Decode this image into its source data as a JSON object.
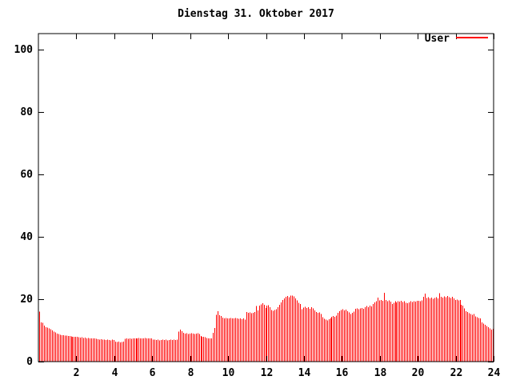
{
  "window": {
    "background": "#ffffff"
  },
  "chart_data": {
    "type": "bar",
    "title": "Dienstag 31. Oktober 2017",
    "xlabel": "",
    "ylabel": "",
    "x_unit": "hour of day",
    "x_range": [
      0,
      24
    ],
    "y_range": [
      0,
      105
    ],
    "x_ticks": [
      2,
      4,
      6,
      8,
      10,
      12,
      14,
      16,
      18,
      20,
      22,
      24
    ],
    "y_ticks": [
      0,
      20,
      40,
      60,
      80,
      100
    ],
    "grid": false,
    "legend_position": "top-right-inside",
    "axis_color": "#000000",
    "sample_interval_minutes": 5,
    "series": [
      {
        "name": "User",
        "color": "#ff0000",
        "values": [
          16.0,
          12.6,
          12.4,
          11.6,
          11.0,
          10.9,
          10.7,
          10.4,
          10.0,
          9.6,
          9.3,
          9.0,
          8.8,
          8.6,
          8.5,
          8.4,
          8.3,
          8.3,
          8.2,
          8.2,
          8.1,
          8.0,
          8.0,
          7.9,
          7.9,
          7.8,
          7.7,
          7.8,
          7.6,
          7.7,
          7.5,
          7.6,
          7.5,
          7.4,
          7.5,
          7.4,
          7.3,
          7.2,
          7.1,
          7.2,
          7.0,
          7.1,
          6.9,
          7.0,
          6.9,
          6.8,
          7.0,
          6.9,
          6.4,
          6.3,
          6.4,
          6.2,
          6.3,
          6.4,
          7.3,
          7.4,
          7.3,
          7.4,
          7.3,
          7.4,
          7.5,
          7.4,
          7.5,
          7.6,
          7.5,
          7.4,
          7.5,
          7.6,
          7.5,
          7.4,
          7.5,
          7.4,
          7.1,
          7.0,
          6.9,
          7.0,
          6.8,
          6.9,
          7.0,
          6.9,
          7.0,
          6.8,
          6.9,
          7.0,
          6.9,
          7.0,
          6.9,
          7.0,
          9.6,
          10.3,
          9.7,
          9.2,
          9.0,
          9.1,
          8.9,
          9.0,
          9.1,
          9.0,
          8.9,
          9.0,
          9.1,
          8.9,
          8.2,
          8.0,
          7.9,
          7.8,
          7.6,
          7.5,
          7.5,
          7.4,
          9.2,
          10.8,
          15.0,
          16.2,
          14.9,
          14.6,
          14.1,
          13.9,
          14.0,
          13.8,
          13.9,
          14.0,
          13.8,
          13.9,
          14.0,
          13.8,
          13.7,
          13.9,
          13.6,
          13.8,
          13.5,
          15.9,
          15.6,
          15.8,
          15.5,
          15.7,
          15.9,
          17.8,
          16.4,
          18.0,
          18.3,
          18.7,
          18.2,
          17.2,
          18.0,
          18.1,
          17.4,
          16.6,
          16.3,
          16.5,
          16.8,
          17.5,
          18.2,
          19.0,
          19.7,
          20.3,
          20.8,
          21.0,
          20.7,
          21.1,
          21.2,
          20.9,
          20.3,
          19.6,
          18.9,
          18.4,
          16.8,
          17.3,
          17.6,
          17.2,
          17.5,
          16.9,
          17.4,
          17.0,
          16.4,
          15.9,
          15.6,
          15.8,
          15.3,
          14.2,
          13.7,
          13.4,
          13.2,
          13.6,
          13.9,
          14.4,
          14.6,
          14.3,
          14.8,
          15.6,
          16.2,
          16.6,
          16.8,
          16.4,
          16.7,
          16.2,
          15.8,
          15.2,
          15.6,
          16.0,
          16.9,
          17.1,
          16.8,
          17.0,
          17.2,
          16.9,
          17.4,
          17.8,
          17.5,
          18.0,
          17.7,
          18.4,
          19.0,
          19.4,
          20.5,
          19.6,
          19.8,
          19.5,
          22.0,
          19.7,
          19.4,
          19.6,
          19.2,
          18.4,
          18.9,
          19.3,
          19.0,
          19.4,
          19.2,
          19.5,
          19.1,
          19.3,
          18.9,
          18.7,
          19.0,
          19.3,
          19.1,
          19.4,
          19.2,
          19.5,
          19.5,
          19.4,
          19.6,
          20.8,
          21.8,
          20.4,
          20.7,
          20.2,
          20.5,
          20.1,
          20.4,
          20.6,
          20.3,
          21.9,
          20.8,
          20.5,
          20.9,
          20.6,
          21.0,
          20.7,
          20.4,
          20.8,
          20.2,
          19.8,
          19.9,
          19.6,
          19.8,
          18.2,
          17.9,
          17.0,
          16.2,
          15.9,
          15.5,
          15.2,
          15.0,
          15.3,
          14.5,
          14.2,
          14.0,
          13.8,
          12.6,
          12.2,
          11.8,
          11.4,
          11.0,
          10.6,
          10.3,
          10.5
        ]
      }
    ]
  }
}
